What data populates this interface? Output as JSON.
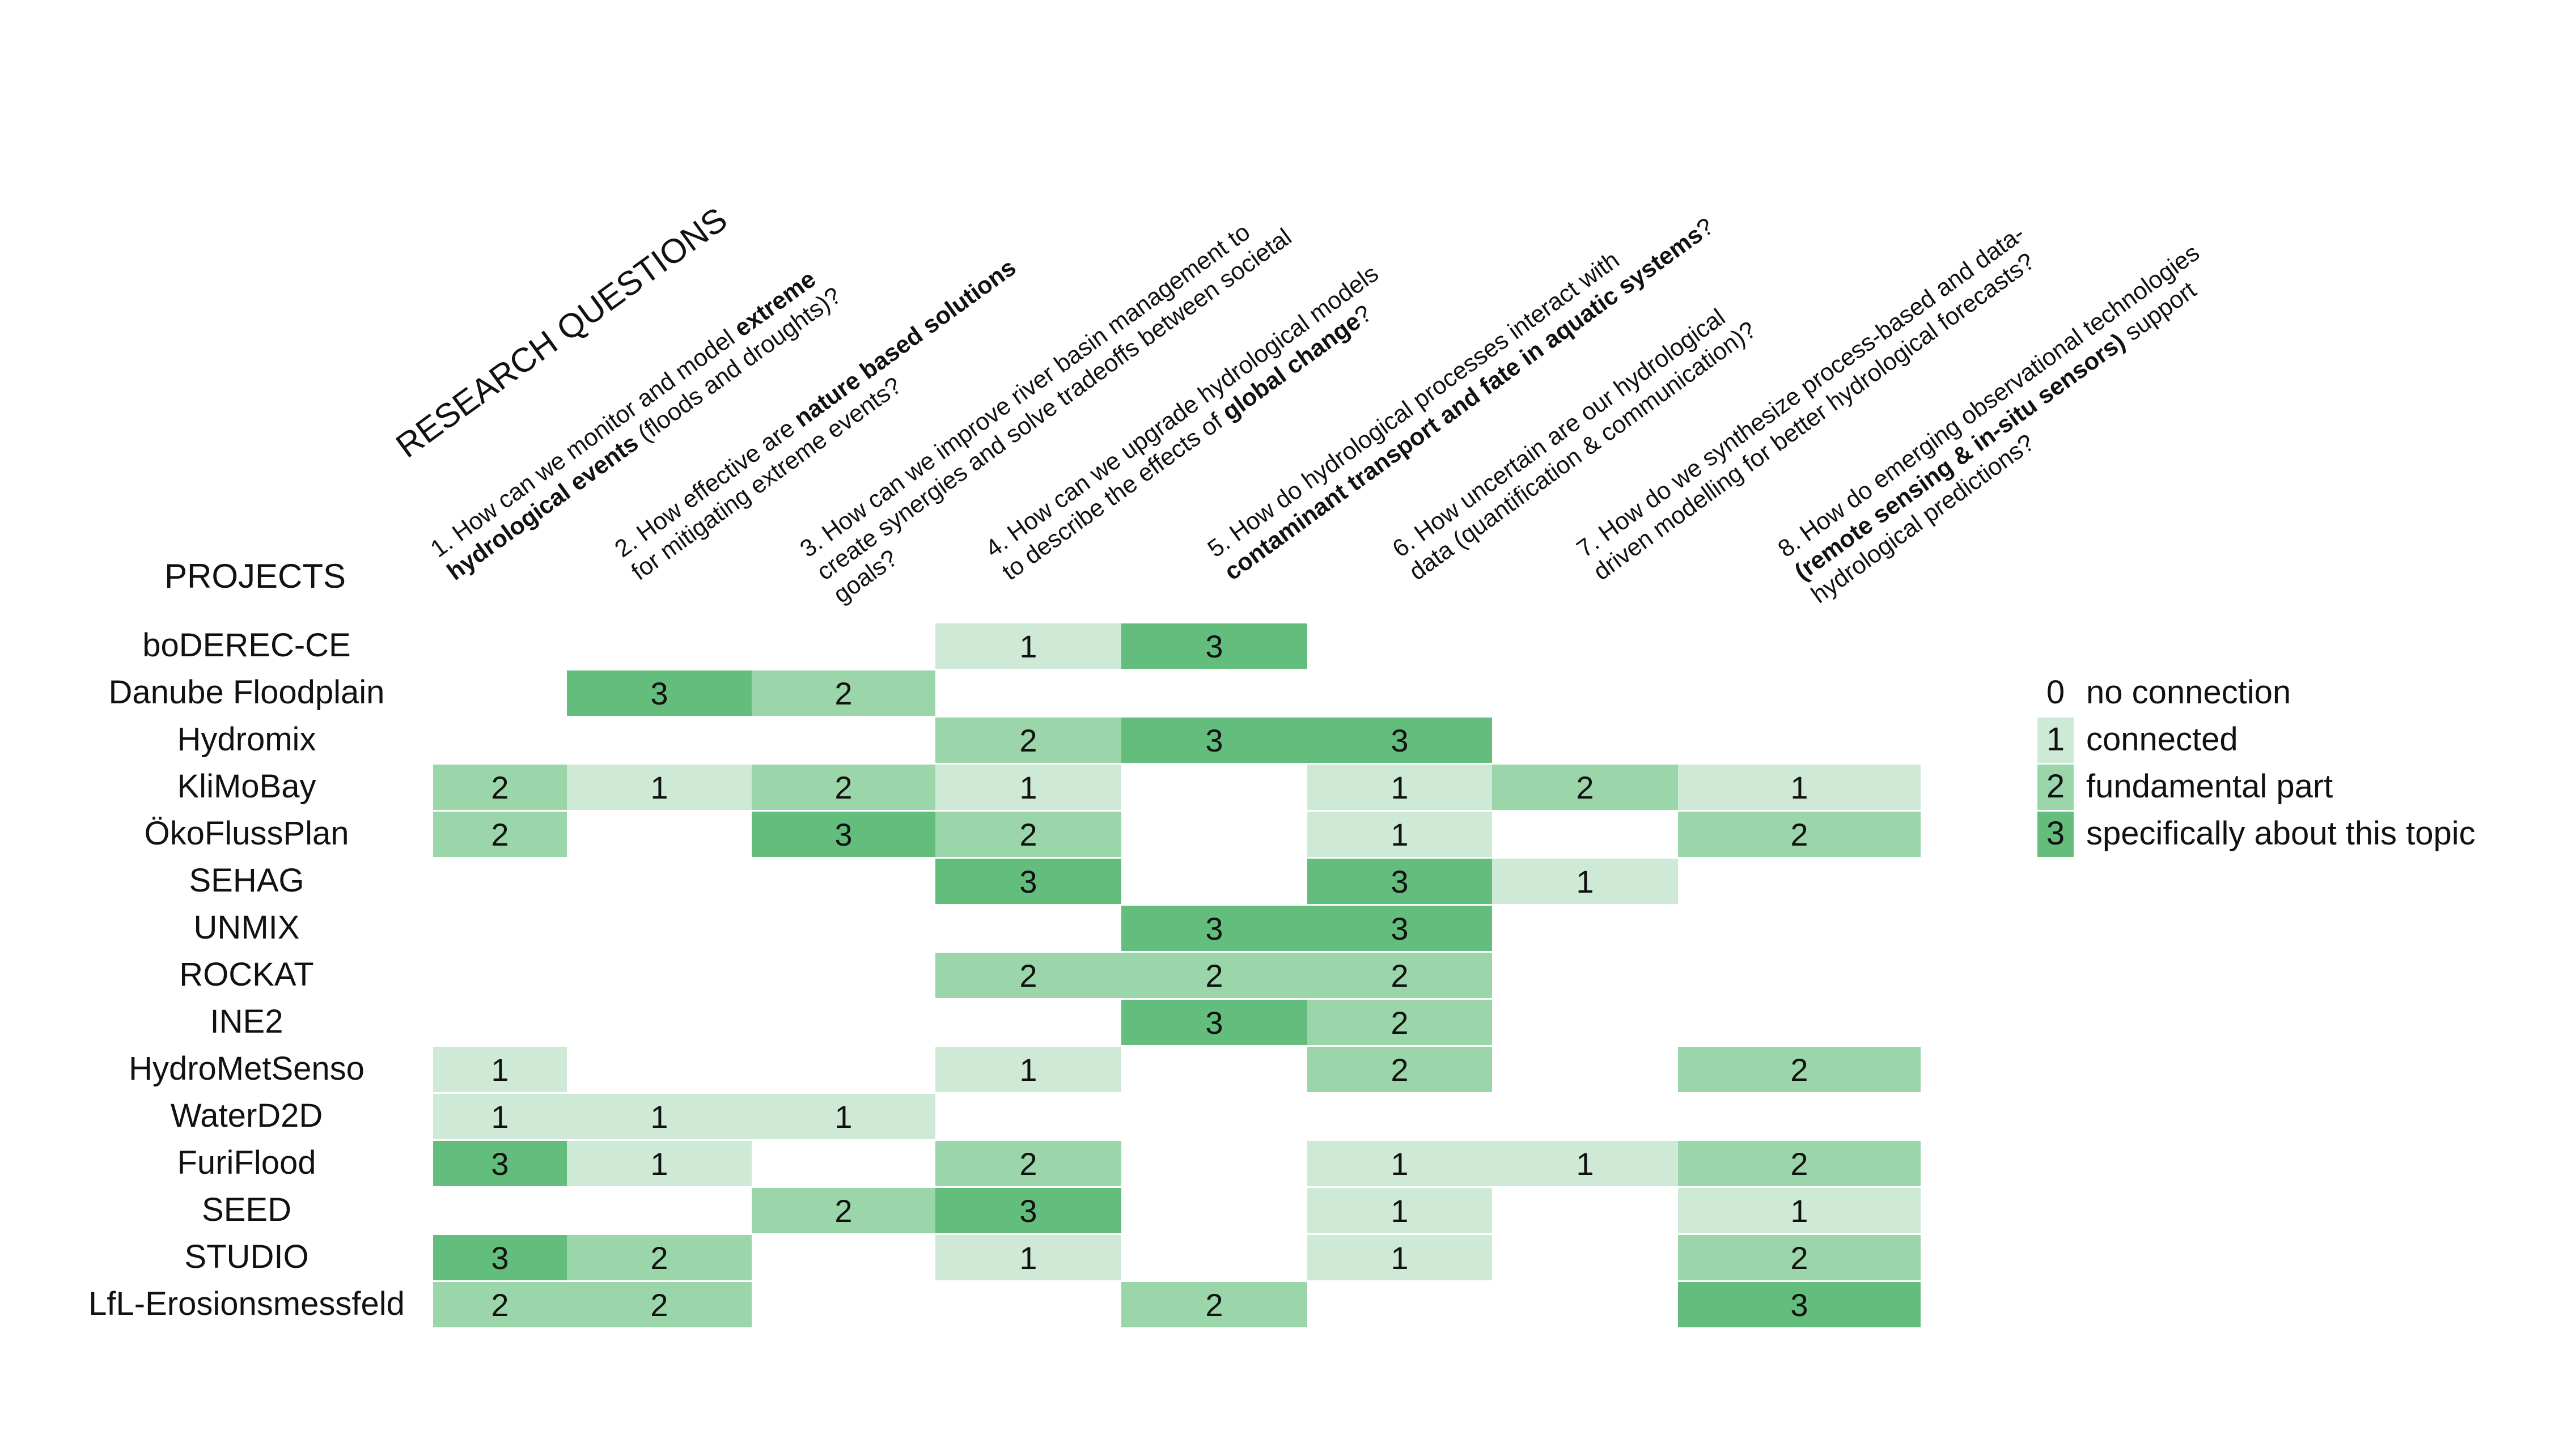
{
  "chart_data": {
    "type": "heatmap",
    "title": "RESEARCH QUESTIONS",
    "row_header": "PROJECTS",
    "questions": [
      [
        [
          {
            "t": "1. How can we monitor and model ",
            "b": false
          },
          {
            "t": "extreme",
            "b": true
          }
        ],
        [
          {
            "t": "hydrological events",
            "b": true
          },
          {
            "t": " (floods and droughts)?",
            "b": false
          }
        ]
      ],
      [
        [
          {
            "t": "2. How effective are ",
            "b": false
          },
          {
            "t": "nature based solutions",
            "b": true
          }
        ],
        [
          {
            "t": "for mitigating extreme events?",
            "b": false
          }
        ]
      ],
      [
        [
          {
            "t": "3. How can we improve river basin management to",
            "b": false
          }
        ],
        [
          {
            "t": "create synergies and solve tradeoffs between societal",
            "b": false
          }
        ],
        [
          {
            "t": "goals?",
            "b": false
          }
        ]
      ],
      [
        [
          {
            "t": "4. How can we upgrade hydrological models",
            "b": false
          }
        ],
        [
          {
            "t": "to describe the effects of ",
            "b": false
          },
          {
            "t": "global change",
            "b": true
          },
          {
            "t": "?",
            "b": false
          }
        ]
      ],
      [
        [
          {
            "t": "5. How do hydrological processes interact with",
            "b": false
          }
        ],
        [
          {
            "t": "contaminant transport and fate in aquatic systems",
            "b": true
          },
          {
            "t": "?",
            "b": false
          }
        ]
      ],
      [
        [
          {
            "t": "6. How uncertain are our hydrological",
            "b": false
          }
        ],
        [
          {
            "t": "data (quantification & communication)?",
            "b": false
          }
        ]
      ],
      [
        [
          {
            "t": "7. How do we synthesize process-based and data-",
            "b": false
          }
        ],
        [
          {
            "t": "driven modelling for better hydrological forecasts?",
            "b": false
          }
        ]
      ],
      [
        [
          {
            "t": "8. How do emerging observational technologies",
            "b": false
          }
        ],
        [
          {
            "t": "(remote sensing & in-situ sensors)",
            "b": true
          },
          {
            "t": " support",
            "b": false
          }
        ],
        [
          {
            "t": "hydrological predictions?",
            "b": false
          }
        ]
      ]
    ],
    "projects": [
      "boDEREC-CE",
      "Danube Floodplain",
      "Hydromix",
      "KliMoBay",
      "ÖkoFlussPlan",
      "SEHAG",
      "UNMIX",
      "ROCKAT",
      "INE2",
      "HydroMetSenso",
      "WaterD2D",
      "FuriFlood",
      "SEED",
      "STUDIO",
      "LfL-Erosionsmessfeld"
    ],
    "values": [
      [
        0,
        0,
        0,
        1,
        3,
        0,
        0,
        0
      ],
      [
        0,
        3,
        2,
        0,
        0,
        0,
        0,
        0
      ],
      [
        0,
        0,
        0,
        2,
        3,
        3,
        0,
        0
      ],
      [
        2,
        1,
        2,
        1,
        0,
        1,
        2,
        1
      ],
      [
        2,
        0,
        3,
        2,
        0,
        1,
        0,
        2
      ],
      [
        0,
        0,
        0,
        3,
        0,
        3,
        1,
        0
      ],
      [
        0,
        0,
        0,
        0,
        3,
        3,
        0,
        0
      ],
      [
        0,
        0,
        0,
        2,
        2,
        2,
        0,
        0
      ],
      [
        0,
        0,
        0,
        0,
        3,
        2,
        0,
        0
      ],
      [
        1,
        0,
        0,
        1,
        0,
        2,
        0,
        2
      ],
      [
        1,
        1,
        1,
        0,
        0,
        0,
        0,
        0
      ],
      [
        3,
        1,
        0,
        2,
        0,
        1,
        1,
        2
      ],
      [
        0,
        0,
        2,
        3,
        0,
        1,
        0,
        1
      ],
      [
        3,
        2,
        0,
        1,
        0,
        1,
        0,
        2
      ],
      [
        2,
        2,
        0,
        0,
        2,
        0,
        0,
        3
      ]
    ],
    "color_scale": {
      "0": "#ffffff",
      "1": "#cfe9d7",
      "2": "#9ad6a9",
      "3": "#63bd7c"
    },
    "legend": [
      {
        "value": "0",
        "label": "no connection"
      },
      {
        "value": "1",
        "label": "connected"
      },
      {
        "value": "2",
        "label": "fundamental part"
      },
      {
        "value": "3",
        "label": "specifically about this topic"
      }
    ]
  }
}
